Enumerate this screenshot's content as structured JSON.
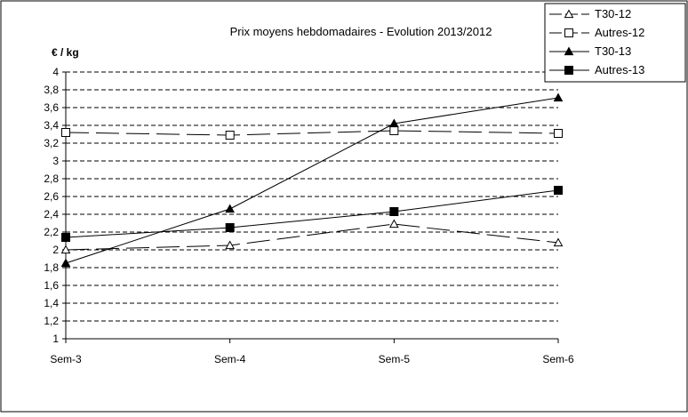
{
  "chart_data": {
    "type": "line",
    "title": "Prix moyens hebdomadaires - Evolution  2013/2012",
    "ylabel": "€ / kg",
    "xlabel": "",
    "categories": [
      "Sem-3",
      "Sem-4",
      "Sem-5",
      "Sem-6"
    ],
    "ylim": [
      1,
      4
    ],
    "ytick_step": 0.2,
    "ytick_labels": [
      "1",
      "1,2",
      "1,4",
      "1,6",
      "1,8",
      "2",
      "2,2",
      "2,4",
      "2,6",
      "2,8",
      "3",
      "3,2",
      "3,4",
      "3,6",
      "3,8",
      "4"
    ],
    "grid": "horizontal-dashed",
    "legend_position": "right",
    "series": [
      {
        "name": "T30-12",
        "values": [
          2.0,
          2.05,
          2.29,
          2.08
        ],
        "marker": "triangle-open",
        "line": "long-dash"
      },
      {
        "name": "Autres-12",
        "values": [
          3.32,
          3.29,
          3.34,
          3.31
        ],
        "marker": "square-open",
        "line": "long-dash"
      },
      {
        "name": "T30-13",
        "values": [
          1.85,
          2.46,
          3.42,
          3.71
        ],
        "marker": "triangle-filled",
        "line": "solid"
      },
      {
        "name": "Autres-13",
        "values": [
          2.14,
          2.25,
          2.43,
          2.67
        ],
        "marker": "square-filled",
        "line": "solid"
      }
    ]
  }
}
